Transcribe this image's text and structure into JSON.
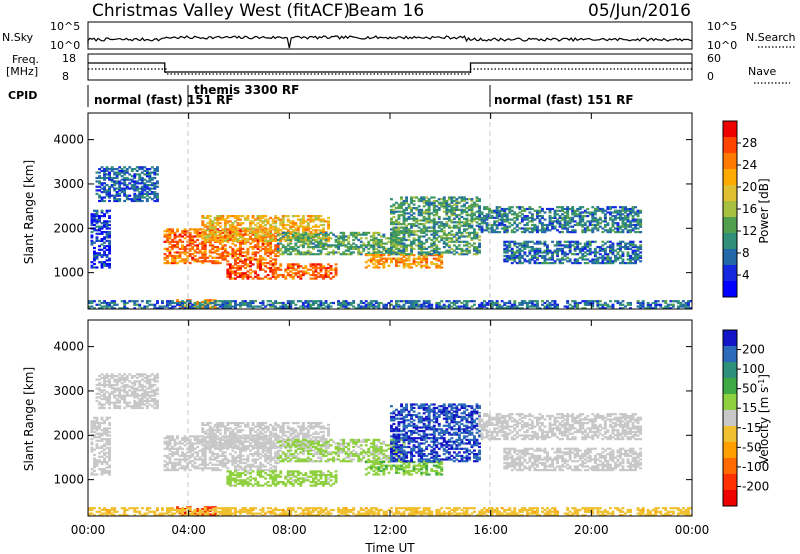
{
  "header": {
    "station": "Christmas Valley West (fitACF)",
    "beam": "Beam 16",
    "date": "05/Jun/2016"
  },
  "top_panels": {
    "nsky_label": "N.Sky",
    "nsearch_label": "N.Search",
    "nsky_ticks": [
      "10^5",
      "10^0"
    ],
    "nsearch_ticks": [
      "10^5",
      "10^0"
    ],
    "freq_label_1": "Freq.",
    "freq_label_2": "[MHz]",
    "freq_ticks": [
      "18",
      "8"
    ],
    "nave_label": "Nave",
    "nave_ticks": [
      "60",
      "0"
    ],
    "cpid_label": "CPID",
    "cpid_segments": [
      {
        "label": "normal (fast) 151 RF",
        "start_h": 0,
        "end_h": 4
      },
      {
        "label": "themis 3300 RF",
        "start_h": 4,
        "end_h": 16
      },
      {
        "label": "normal (fast) 151 RF",
        "start_h": 16,
        "end_h": 24
      }
    ]
  },
  "chart_data": [
    {
      "type": "heatmap",
      "name": "power",
      "ylabel": "Slant Range [km]",
      "xlabel": "",
      "xlim": [
        0,
        24
      ],
      "ylim": [
        180,
        4600
      ],
      "yticks": [
        1000,
        2000,
        3000,
        4000
      ],
      "colorbar": {
        "label": "Power [dB]",
        "ticks": [
          "28",
          "24",
          "20",
          "16",
          "12",
          "8",
          "4"
        ],
        "colors": [
          "#ee0000",
          "#ff4400",
          "#ff7a00",
          "#ffaa00",
          "#e0c030",
          "#a8c040",
          "#50a050",
          "#2f8f78",
          "#2468a8",
          "#1428e0",
          "#0000ff"
        ]
      },
      "regions": [
        {
          "t0": 0.3,
          "t1": 2.8,
          "r0": 2600,
          "r1": 3400,
          "v": 8
        },
        {
          "t0": 0.1,
          "t1": 0.8,
          "r0": 1100,
          "r1": 2400,
          "v": 6
        },
        {
          "t0": 3.0,
          "t1": 7.5,
          "r0": 1200,
          "r1": 2000,
          "v": 24
        },
        {
          "t0": 4.5,
          "t1": 9.5,
          "r0": 1700,
          "r1": 2300,
          "v": 20
        },
        {
          "t0": 5.5,
          "t1": 9.8,
          "r0": 850,
          "r1": 1200,
          "v": 25
        },
        {
          "t0": 7.5,
          "t1": 12.5,
          "r0": 1400,
          "r1": 1900,
          "v": 13
        },
        {
          "t0": 11.0,
          "t1": 14.0,
          "r0": 1100,
          "r1": 1400,
          "v": 22
        },
        {
          "t0": 12.0,
          "t1": 15.5,
          "r0": 1400,
          "r1": 2700,
          "v": 12
        },
        {
          "t0": 15.5,
          "t1": 22.0,
          "r0": 1900,
          "r1": 2500,
          "v": 10
        },
        {
          "t0": 16.5,
          "t1": 22.0,
          "r0": 1200,
          "r1": 1700,
          "v": 9
        },
        {
          "t0": 3.5,
          "t1": 5.0,
          "r0": 200,
          "r1": 400,
          "v": 22
        },
        {
          "t0": 0.0,
          "t1": 24.0,
          "r0": 180,
          "r1": 350,
          "v": 9
        }
      ]
    },
    {
      "type": "heatmap",
      "name": "velocity",
      "ylabel": "Slant Range [km]",
      "xlabel": "Time UT",
      "xlim": [
        0,
        24
      ],
      "ylim": [
        180,
        4600
      ],
      "xticks": [
        "00:00",
        "04:00",
        "08:00",
        "12:00",
        "16:00",
        "20:00",
        "00:00"
      ],
      "yticks": [
        1000,
        2000,
        3000,
        4000
      ],
      "colorbar": {
        "label": "Velocity [m s^-1]",
        "ticks": [
          "200",
          "100",
          "50",
          "15",
          "-15",
          "-50",
          "-100",
          "-200"
        ],
        "colors": [
          "#1414c8",
          "#2a6ab8",
          "#2e8f7a",
          "#3faa44",
          "#8ed040",
          "#c8c8c8",
          "#f0c030",
          "#ffa000",
          "#ff6a00",
          "#ff3000",
          "#ee0000"
        ]
      },
      "regions": [
        {
          "t0": 0.3,
          "t1": 2.8,
          "r0": 2600,
          "r1": 3400,
          "v": 0
        },
        {
          "t0": 0.1,
          "t1": 0.8,
          "r0": 1100,
          "r1": 2400,
          "v": 0
        },
        {
          "t0": 3.0,
          "t1": 7.5,
          "r0": 1200,
          "r1": 2000,
          "v": 0
        },
        {
          "t0": 4.5,
          "t1": 9.5,
          "r0": 1700,
          "r1": 2300,
          "v": 0
        },
        {
          "t0": 5.5,
          "t1": 9.8,
          "r0": 850,
          "r1": 1200,
          "v": 40
        },
        {
          "t0": 7.5,
          "t1": 12.5,
          "r0": 1400,
          "r1": 1900,
          "v": 30
        },
        {
          "t0": 11.0,
          "t1": 14.0,
          "r0": 1100,
          "r1": 1400,
          "v": 60
        },
        {
          "t0": 12.0,
          "t1": 15.5,
          "r0": 1400,
          "r1": 2700,
          "v": 200
        },
        {
          "t0": 15.5,
          "t1": 22.0,
          "r0": 1900,
          "r1": 2500,
          "v": 0
        },
        {
          "t0": 16.5,
          "t1": 22.0,
          "r0": 1200,
          "r1": 1700,
          "v": 0
        },
        {
          "t0": 3.5,
          "t1": 5.0,
          "r0": 200,
          "r1": 400,
          "v": -200
        },
        {
          "t0": 0.0,
          "t1": 24.0,
          "r0": 180,
          "r1": 350,
          "v": -50
        }
      ]
    }
  ]
}
